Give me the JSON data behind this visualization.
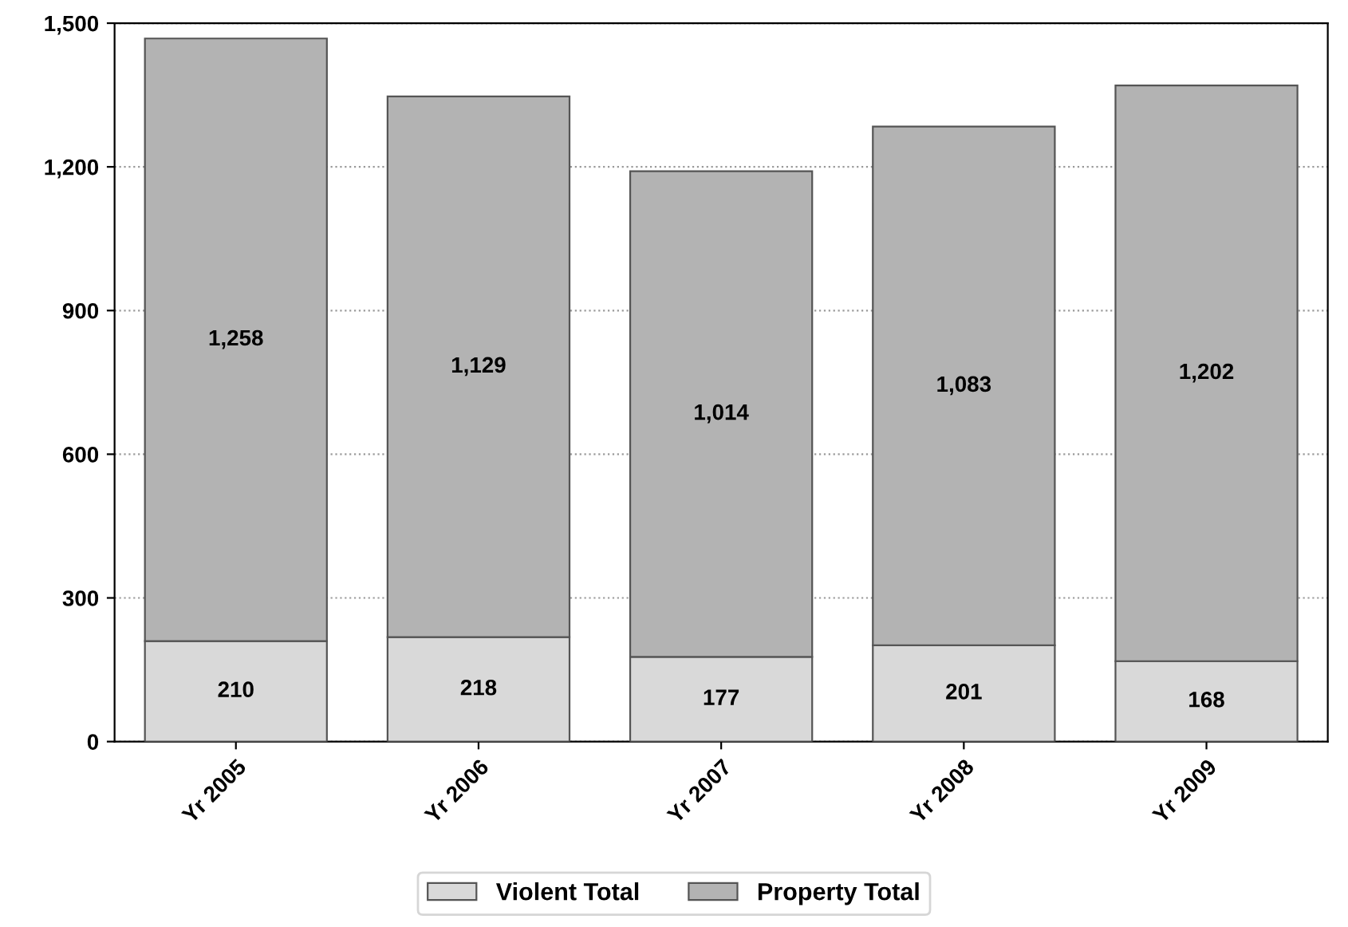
{
  "chart_data": {
    "type": "bar",
    "stacked": true,
    "categories": [
      "Yr 2005",
      "Yr 2006",
      "Yr 2007",
      "Yr 2008",
      "Yr 2009"
    ],
    "series": [
      {
        "name": "Violent Total",
        "color": "#d9d9d9",
        "values": [
          210,
          218,
          177,
          201,
          168
        ],
        "value_labels": [
          "210",
          "218",
          "177",
          "201",
          "168"
        ]
      },
      {
        "name": "Property Total",
        "color": "#b3b3b3",
        "values": [
          1258,
          1129,
          1014,
          1083,
          1202
        ],
        "value_labels": [
          "1,258",
          "1,129",
          "1,014",
          "1,083",
          "1,202"
        ]
      }
    ],
    "ylim": [
      0,
      1500
    ],
    "yticks": [
      {
        "value": 0,
        "label": "0"
      },
      {
        "value": 300,
        "label": "300"
      },
      {
        "value": 600,
        "label": "600"
      },
      {
        "value": 900,
        "label": "900"
      },
      {
        "value": 1200,
        "label": "1,200"
      },
      {
        "value": 1500,
        "label": "1,500"
      }
    ],
    "grid": "y",
    "legend": "bottom"
  }
}
